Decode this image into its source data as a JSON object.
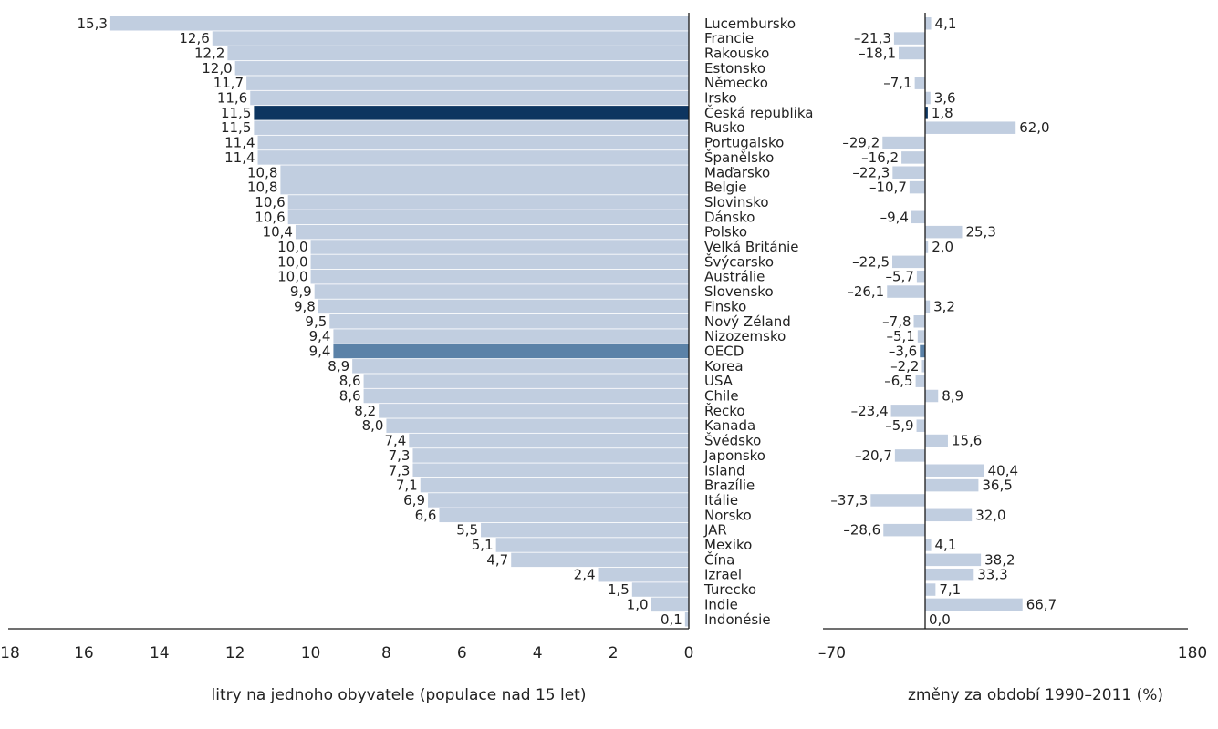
{
  "colors": {
    "bar": "#c1cee0",
    "highlight_dark": "#0d3560",
    "highlight_mid": "#5b82a8",
    "axis": "#1a1a1a"
  },
  "chart_data": [
    {
      "type": "bar",
      "orientation": "horizontal",
      "direction": "leftward",
      "xlabel": "litry na jednoho obyvatele (populace nad 15 let)",
      "xlim": [
        18,
        0
      ],
      "xticks": [
        "18",
        "16",
        "14",
        "12",
        "10",
        "8",
        "6",
        "4",
        "2",
        "0"
      ],
      "categories": [
        "Lucembursko",
        "Francie",
        "Rakousko",
        "Estonsko",
        "Německo",
        "Irsko",
        "Česká republika",
        "Rusko",
        "Portugalsko",
        "Španělsko",
        "Maďarsko",
        "Belgie",
        "Slovinsko",
        "Dánsko",
        "Polsko",
        "Velká Británie",
        "Švýcarsko",
        "Austrálie",
        "Slovensko",
        "Finsko",
        "Nový Zéland",
        "Nizozemsko",
        "OECD",
        "Korea",
        "USA",
        "Chile",
        "Řecko",
        "Kanada",
        "Švédsko",
        "Japonsko",
        "Island",
        "Brazílie",
        "Itálie",
        "Norsko",
        "JAR",
        "Mexiko",
        "Čína",
        "Izrael",
        "Turecko",
        "Indie",
        "Indonésie"
      ],
      "values": [
        15.3,
        12.6,
        12.2,
        12.0,
        11.7,
        11.6,
        11.5,
        11.5,
        11.4,
        11.4,
        10.8,
        10.8,
        10.6,
        10.6,
        10.4,
        10.0,
        10.0,
        10.0,
        9.9,
        9.8,
        9.5,
        9.4,
        9.4,
        8.9,
        8.6,
        8.6,
        8.2,
        8.0,
        7.4,
        7.3,
        7.3,
        7.1,
        6.9,
        6.6,
        5.5,
        5.1,
        4.7,
        2.4,
        1.5,
        1.0,
        0.1
      ],
      "labels": [
        "15,3",
        "12,6",
        "12,2",
        "12,0",
        "11,7",
        "11,6",
        "11,5",
        "11,5",
        "11,4",
        "11,4",
        "10,8",
        "10,8",
        "10,6",
        "10,6",
        "10,4",
        "10,0",
        "10,0",
        "10,0",
        "9,9",
        "9,8",
        "9,5",
        "9,4",
        "9,4",
        "8,9",
        "8,6",
        "8,6",
        "8,2",
        "8,0",
        "7,4",
        "7,3",
        "7,3",
        "7,1",
        "6,9",
        "6,6",
        "5,5",
        "5,1",
        "4,7",
        "2,4",
        "1,5",
        "1,0",
        "0,1"
      ],
      "highlight": {
        "Česká republika": "#0d3560",
        "OECD": "#5b82a8"
      }
    },
    {
      "type": "bar",
      "orientation": "horizontal",
      "xlabel": "změny za období 1990–2011 (%)",
      "xlim": [
        -70,
        180
      ],
      "xticks": [
        "–70",
        "180"
      ],
      "categories": [
        "Lucembursko",
        "Francie",
        "Rakousko",
        "Estonsko",
        "Německo",
        "Irsko",
        "Česká republika",
        "Rusko",
        "Portugalsko",
        "Španělsko",
        "Maďarsko",
        "Belgie",
        "Slovinsko",
        "Dánsko",
        "Polsko",
        "Velká Británie",
        "Švýcarsko",
        "Austrálie",
        "Slovensko",
        "Finsko",
        "Nový Zéland",
        "Nizozemsko",
        "OECD",
        "Korea",
        "USA",
        "Chile",
        "Řecko",
        "Kanada",
        "Švédsko",
        "Japonsko",
        "Island",
        "Brazílie",
        "Itálie",
        "Norsko",
        "JAR",
        "Mexiko",
        "Čína",
        "Izrael",
        "Turecko",
        "Indie",
        "Indonésie"
      ],
      "values": [
        4.1,
        -21.3,
        -18.1,
        null,
        -7.1,
        3.6,
        1.8,
        62.0,
        -29.2,
        -16.2,
        -22.3,
        -10.7,
        null,
        -9.4,
        25.3,
        2.0,
        -22.5,
        -5.7,
        -26.1,
        3.2,
        -7.8,
        -5.1,
        -3.6,
        -2.2,
        -6.5,
        8.9,
        -23.4,
        -5.9,
        15.6,
        -20.7,
        40.4,
        36.5,
        -37.3,
        32.0,
        -28.6,
        4.1,
        38.2,
        33.3,
        7.1,
        66.7,
        0.0
      ],
      "labels": [
        "4,1",
        "–21,3",
        "–18,1",
        "",
        "–7,1",
        "3,6",
        "1,8",
        "62,0",
        "–29,2",
        "–16,2",
        "–22,3",
        "–10,7",
        "",
        "–9,4",
        "25,3",
        "2,0",
        "–22,5",
        "–5,7",
        "–26,1",
        "3,2",
        "–7,8",
        "–5,1",
        "–3,6",
        "–2,2",
        "–6,5",
        "8,9",
        "–23,4",
        "–5,9",
        "15,6",
        "–20,7",
        "40,4",
        "36,5",
        "–37,3",
        "32,0",
        "–28,6",
        "4,1",
        "38,2",
        "33,3",
        "7,1",
        "66,7",
        "0,0"
      ],
      "highlight": {
        "Česká republika": "#0d3560",
        "OECD": "#5b82a8"
      }
    }
  ]
}
